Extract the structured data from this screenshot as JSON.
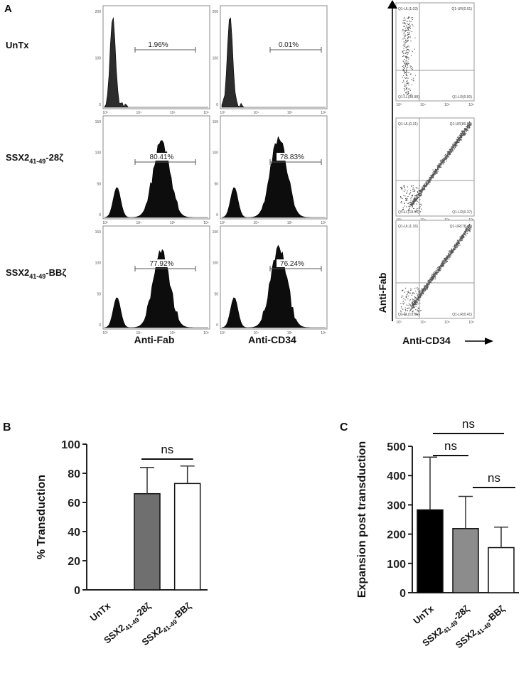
{
  "panelA": {
    "label": "A",
    "rows": [
      {
        "base": "UnTx",
        "sub": "",
        "suffix": ""
      },
      {
        "base": "SSX2",
        "sub": "41-49",
        "suffix": "-28ζ"
      },
      {
        "base": "SSX2",
        "sub": "41-49",
        "suffix": "-BBζ"
      }
    ],
    "col_xlabels": [
      "Anti-Fab",
      "Anti-CD34"
    ],
    "hist_percentages": [
      [
        "1.96%",
        "0.01%"
      ],
      [
        "80.41%",
        "78.83%"
      ],
      [
        "77.92%",
        "76.24%"
      ]
    ],
    "quad_labels": [
      [
        "Q1-UL(1.03)",
        "Q1-UR(0.01)",
        "Q1-LL(98.98)",
        "Q1-LR(0.00)"
      ],
      [
        "Q1-UL(0.31)",
        "Q1-UR(80.83)",
        "Q1-LL(18.50)",
        "Q1-LR(0.37)"
      ],
      [
        "Q1-UL(1.16)",
        "Q1-UR(78.47)",
        "Q1-LL(19.96)",
        "Q1-LR(0.41)"
      ]
    ],
    "scatter_ylabel": "Anti-Fab",
    "scatter_xlabel": "Anti-CD34"
  },
  "panelB": {
    "label": "B"
  },
  "panelC": {
    "label": "C"
  },
  "chart_data": [
    {
      "type": "bar",
      "categories": [
        "UnTx",
        "SSX2_41-49-28ζ",
        "SSX2_41-49-BBζ"
      ],
      "values": [
        0,
        66,
        73
      ],
      "errors": [
        0,
        18,
        12
      ],
      "colors": [
        "#000000",
        "#6f6f6f",
        "#ffffff"
      ],
      "ylabel": "% Transduction",
      "ylim": [
        0,
        100
      ],
      "yticks": [
        0,
        20,
        40,
        60,
        80,
        100
      ],
      "significance": [
        {
          "pair": [
            1,
            2
          ],
          "label": "ns"
        }
      ]
    },
    {
      "type": "bar",
      "categories": [
        "UnTx",
        "SSX2_41-49-28ζ",
        "SSX2_41-49-BBζ"
      ],
      "values": [
        283,
        219,
        154
      ],
      "errors": [
        180,
        110,
        70
      ],
      "colors": [
        "#000000",
        "#8c8c8c",
        "#ffffff"
      ],
      "ylabel": "Expansion post transduction",
      "ylim": [
        0,
        500
      ],
      "yticks": [
        0,
        100,
        200,
        300,
        400,
        500
      ],
      "significance": [
        {
          "pair": [
            0,
            2
          ],
          "label": "ns"
        },
        {
          "pair": [
            0,
            1
          ],
          "label": "ns"
        },
        {
          "pair": [
            1,
            2
          ],
          "label": "ns"
        }
      ]
    }
  ]
}
